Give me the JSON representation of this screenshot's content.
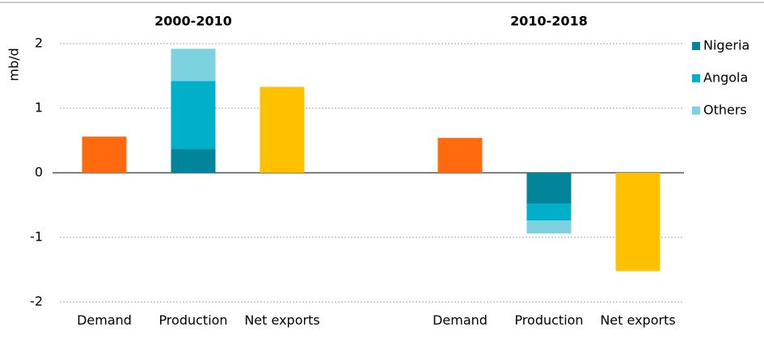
{
  "chart_data": {
    "type": "stacked_bar",
    "group_titles": [
      "2000-2010",
      "2010-2018"
    ],
    "ylabel": "mb/d",
    "categories": [
      "Demand",
      "Production",
      "Net exports",
      "Demand",
      "Production",
      "Net exports"
    ],
    "values": [
      0.56,
      null,
      1.33,
      0.54,
      null,
      -1.52
    ],
    "bar_colors": [
      "#ff6a0e",
      null,
      "#ffc000",
      "#ff6a0e",
      null,
      "#ffc000"
    ],
    "series": [
      {
        "name": "Nigeria",
        "color": "#00849a",
        "values": [
          null,
          0.37,
          null,
          null,
          -0.48,
          null
        ]
      },
      {
        "name": "Angola",
        "color": "#00b0c8",
        "values": [
          null,
          1.05,
          null,
          null,
          -0.26,
          null
        ]
      },
      {
        "name": "Others",
        "color": "#7dd2df",
        "values": [
          null,
          0.5,
          null,
          null,
          -0.2,
          null
        ]
      }
    ],
    "ylim": [
      -2,
      2
    ],
    "yticks": [
      -2,
      -1,
      0,
      1,
      2
    ],
    "grid": true
  }
}
